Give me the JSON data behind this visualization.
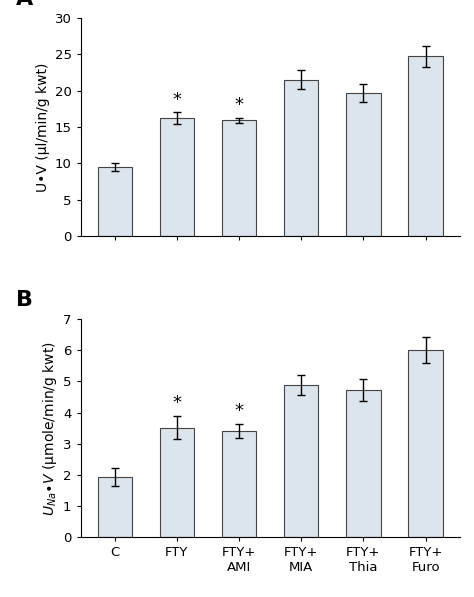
{
  "panel_A": {
    "categories": [
      "C",
      "FTY",
      "FTY+\nAMI",
      "FTY+\nMIA",
      "FTY+\nThia",
      "FTY+\nFuro"
    ],
    "values": [
      9.5,
      16.2,
      15.9,
      21.5,
      19.7,
      24.7
    ],
    "errors": [
      0.6,
      0.8,
      0.4,
      1.3,
      1.2,
      1.5
    ],
    "ylim": [
      0,
      30
    ],
    "yticks": [
      0,
      5,
      10,
      15,
      20,
      25,
      30
    ],
    "ylabel": "U•V (μl/min/g kwt)",
    "label": "A",
    "sig": [
      false,
      true,
      true,
      false,
      false,
      false
    ]
  },
  "panel_B": {
    "categories": [
      "C",
      "FTY",
      "FTY+\nAMI",
      "FTY+\nMIA",
      "FTY+\nThia",
      "FTY+\nFuro"
    ],
    "values": [
      1.93,
      3.52,
      3.42,
      4.88,
      4.72,
      6.02
    ],
    "errors": [
      0.28,
      0.38,
      0.22,
      0.32,
      0.35,
      0.42
    ],
    "ylim": [
      0,
      7
    ],
    "yticks": [
      0,
      1,
      2,
      3,
      4,
      5,
      6,
      7
    ],
    "ylabel_line1": "U",
    "ylabel_line2": "Na",
    "ylabel": "U_Na•V (μmole/min/g kwt)",
    "label": "B",
    "sig": [
      false,
      true,
      true,
      false,
      false,
      false
    ]
  },
  "bar_color": "#dce4ec",
  "bar_edgecolor": "#444444",
  "bar_linewidth": 0.8,
  "bar_width": 0.55,
  "tick_fontsize": 9.5,
  "ylabel_fontsize": 10,
  "label_fontsize": 16,
  "star_fontsize": 13,
  "cap_size": 3,
  "elinewidth": 1.0,
  "capthick": 1.0
}
